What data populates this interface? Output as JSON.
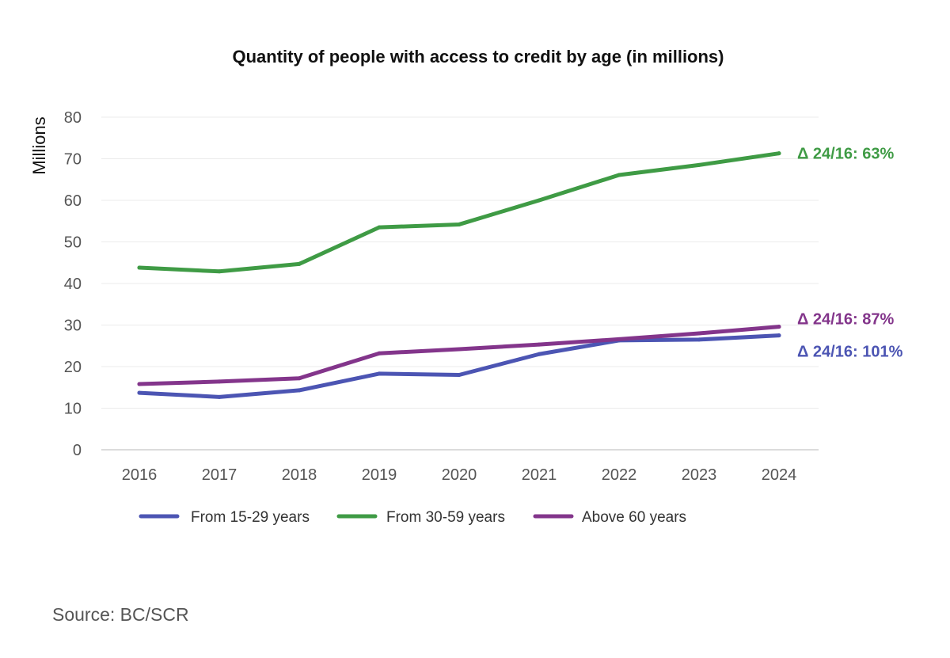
{
  "chart_data": {
    "type": "line",
    "title": "Quantity of people with access to credit by age (in millions)",
    "ylabel": "Millions",
    "xlabel": "",
    "ylim": [
      0,
      80
    ],
    "yticks": [
      0,
      10,
      20,
      30,
      40,
      50,
      60,
      70,
      80
    ],
    "grid": true,
    "legend_position": "bottom",
    "categories": [
      "2016",
      "2017",
      "2018",
      "2019",
      "2020",
      "2021",
      "2022",
      "2023",
      "2024"
    ],
    "series": [
      {
        "name": "From 15-29 years",
        "color": "#4c55b3",
        "values": [
          13.7,
          12.7,
          14.3,
          18.3,
          18.0,
          23.0,
          26.3,
          26.5,
          27.5
        ],
        "annotation": "Δ 24/16: 101%"
      },
      {
        "name": "From 30-59 years",
        "color": "#3f9b45",
        "values": [
          43.8,
          42.9,
          44.7,
          53.5,
          54.2,
          60.0,
          66.1,
          68.5,
          71.3
        ],
        "annotation": "Δ 24/16: 63%"
      },
      {
        "name": "Above 60 years",
        "color": "#83358b",
        "values": [
          15.8,
          16.4,
          17.2,
          23.2,
          24.2,
          25.3,
          26.6,
          28.0,
          29.6
        ],
        "annotation": "Δ 24/16: 87%"
      }
    ]
  },
  "source": "Source: BC/SCR"
}
